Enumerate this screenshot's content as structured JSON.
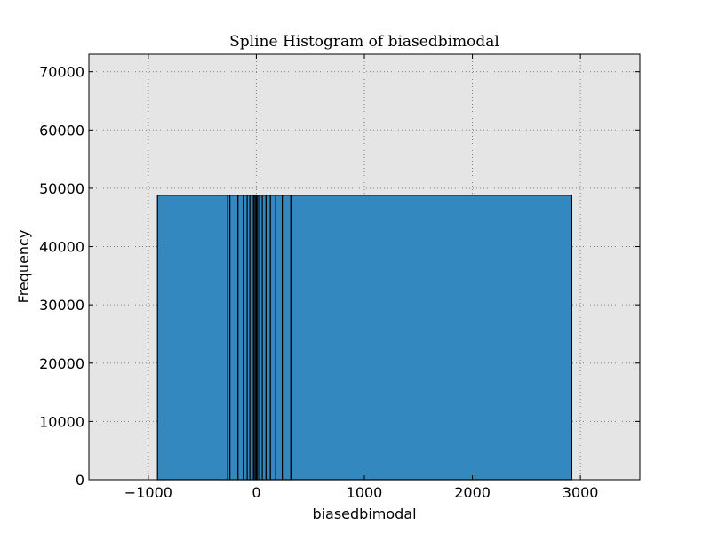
{
  "chart_data": {
    "type": "bar",
    "title": "Spline Histogram of biasedbimodal",
    "xlabel": "biasedbimodal",
    "ylabel": "Frequency",
    "xlim": [
      -1550,
      3550
    ],
    "ylim": [
      0,
      73000
    ],
    "xticks": [
      -1000,
      0,
      1000,
      2000,
      3000
    ],
    "xtick_labels": [
      "−1000",
      "0",
      "1000",
      "2000",
      "3000"
    ],
    "yticks": [
      0,
      10000,
      20000,
      30000,
      40000,
      50000,
      60000,
      70000
    ],
    "ytick_labels": [
      "0",
      "10000",
      "20000",
      "30000",
      "40000",
      "50000",
      "60000",
      "70000"
    ],
    "grid": true,
    "bin_edges": [
      -915,
      -265,
      -245,
      -170,
      -120,
      -85,
      -60,
      -40,
      -25,
      -12,
      0,
      12,
      30,
      55,
      90,
      130,
      180,
      240,
      320,
      2920
    ],
    "bin_height": 48800,
    "colors": {
      "bar_fill": "#3388bf",
      "bar_edge": "#000000",
      "axes_background": "#e5e5e5",
      "grid": "#808080"
    }
  }
}
